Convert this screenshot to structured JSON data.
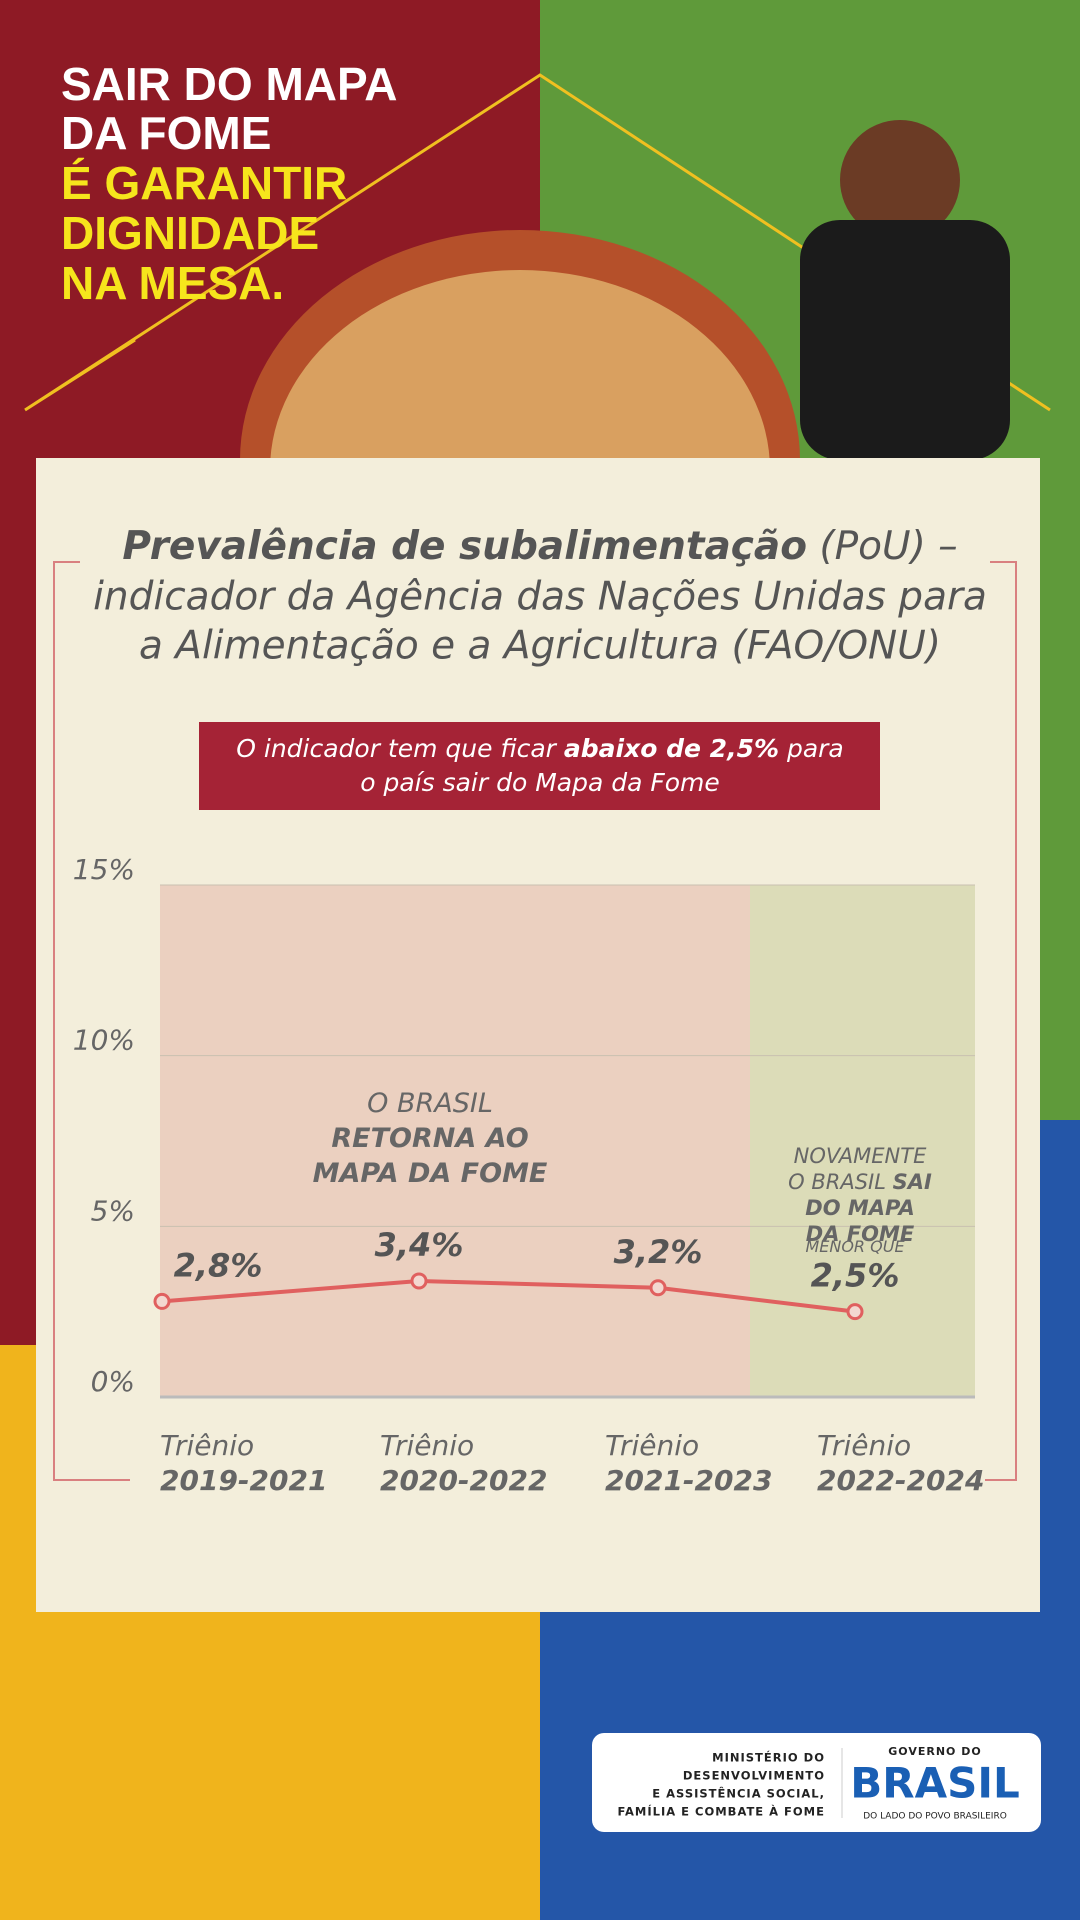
{
  "header": {
    "lines": [
      "SAIR DO MAPA",
      "DA FOME"
    ],
    "highlight_lines": [
      "É GARANTIR",
      "DIGNIDADE",
      "NA MESA."
    ]
  },
  "chart_data": {
    "type": "line",
    "title": {
      "bold": "Prevalência de subalimentação",
      "rest": " (PoU) –",
      "lines": [
        "indicador da Agência das Nações Unidas para",
        "a Alimentação e a Agricultura (FAO/ONU)"
      ]
    },
    "subtitle": {
      "before": "O indicador tem que ficar ",
      "bold": "abaixo de 2,5%",
      "after": " para",
      "line2": "o país sair do Mapa da Fome"
    },
    "categories": [
      [
        "Triênio",
        "2019-2021"
      ],
      [
        "Triênio",
        "2020-2022"
      ],
      [
        "Triênio",
        "2021-2023"
      ],
      [
        "Triênio",
        "2022-2024"
      ]
    ],
    "series": [
      {
        "color": "#e0605f",
        "values": [
          2.8,
          3.4,
          3.2,
          2.5
        ],
        "value_labels": [
          "2,8%",
          "3,4%",
          "3,2%",
          "2,5%"
        ]
      }
    ],
    "ylim": [
      0,
      15
    ],
    "yticks": [
      {
        "value": 0,
        "label": "0%"
      },
      {
        "value": 5,
        "label": "5%"
      },
      {
        "value": 10,
        "label": "10%"
      },
      {
        "value": 15,
        "label": "15%"
      }
    ],
    "grid": true,
    "annotations": [
      {
        "lines": [
          [
            {
              "text": "O BRASIL"
            }
          ],
          [
            {
              "text": "RETORNA AO",
              "bold": true
            }
          ],
          [
            {
              "text": "MAPA DA FOME",
              "bold": true
            }
          ]
        ]
      },
      {
        "lines": [
          [
            {
              "text": "NOVAMENTE"
            }
          ],
          [
            {
              "text": "O BRASIL "
            },
            {
              "text": "SAI",
              "bold": true
            }
          ],
          [
            {
              "text": "DO MAPA",
              "bold": true
            }
          ],
          [
            {
              "text": "DA FOME",
              "bold": true
            }
          ]
        ]
      }
    ],
    "last_point_note": "MENOR QUE"
  },
  "footer": {
    "ministry": [
      "MINISTÉRIO DO",
      "DESENVOLVIMENTO",
      "E ASSISTÊNCIA SOCIAL,",
      "FAMÍLIA E COMBATE À FOME"
    ],
    "gov_top": "GOVERNO DO",
    "gov_name": "BRASIL",
    "gov_slogan": "DO LADO DO POVO BRASILEIRO"
  }
}
